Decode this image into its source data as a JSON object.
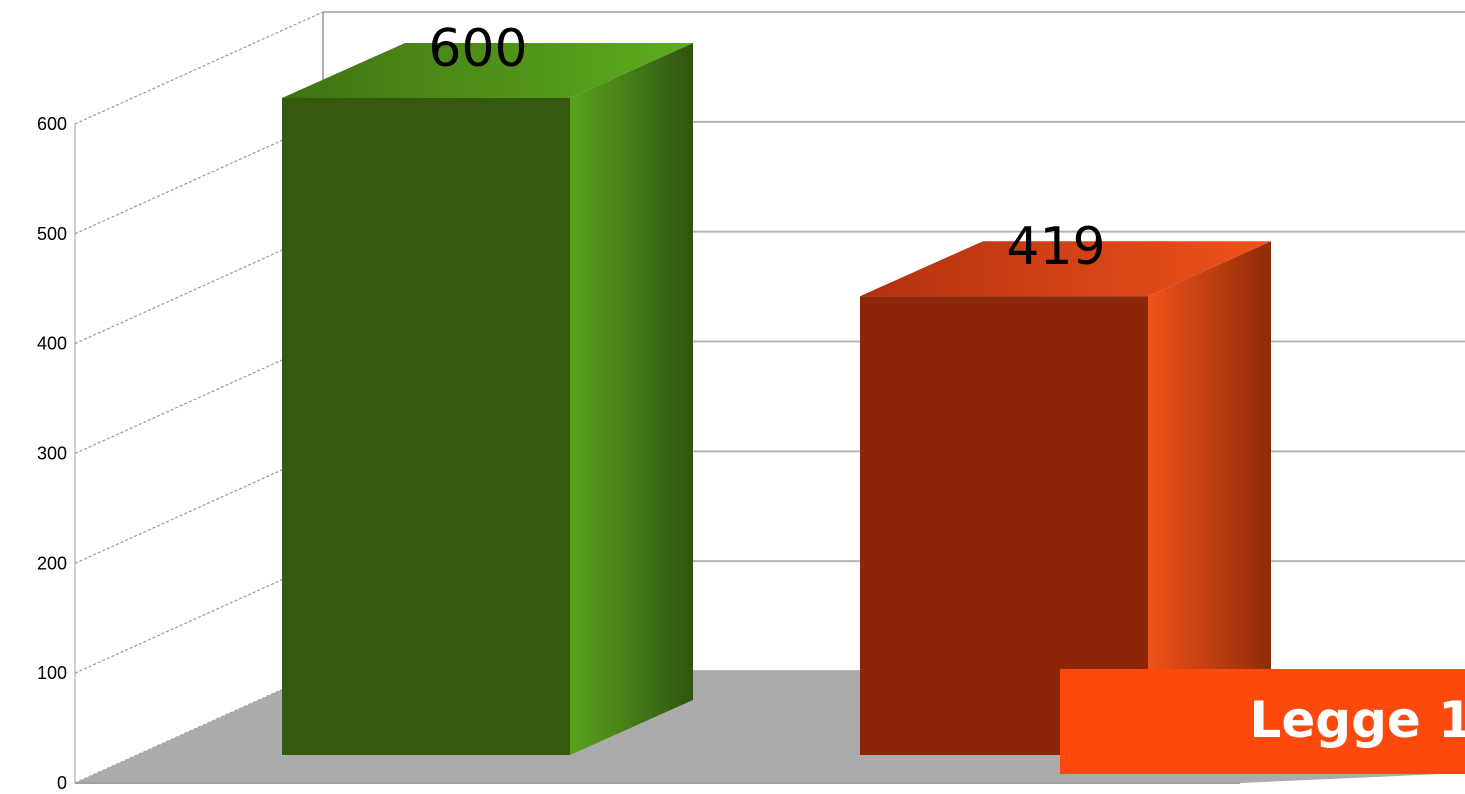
{
  "chart_data": {
    "type": "bar",
    "categories": [
      "",
      ""
    ],
    "values": [
      600,
      419
    ],
    "data_labels": [
      "600",
      "419"
    ],
    "ylim": [
      0,
      600
    ],
    "yticks": [
      "0",
      "100",
      "200",
      "300",
      "400",
      "500",
      "600"
    ],
    "grid": true,
    "style": "3d",
    "colors": [
      "#35590f",
      "#8b2608"
    ],
    "colors_side": [
      "#5aa31e",
      "#e84e14"
    ],
    "colors_top": [
      "#4a8c17",
      "#d84415"
    ],
    "floor_color": "#ababab",
    "legend": {
      "text": "Legge 1",
      "color": "#fc4a0e",
      "placement": "bottom-right"
    }
  }
}
